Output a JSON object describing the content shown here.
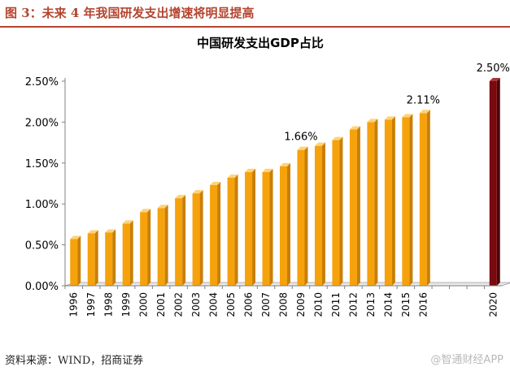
{
  "figure": {
    "caption": "图 3：未来 4 年我国研发支出增速将明显提高",
    "source": "资料来源：WIND，招商证券",
    "watermark": "@智通财经APP"
  },
  "colors": {
    "bar": "#f6a20c",
    "bar_highlight": "#7a0a10",
    "caption": "#b5452f"
  },
  "chart_data": {
    "type": "bar",
    "title": "中国研发支出GDP占比",
    "xlabel": "",
    "ylabel": "",
    "ylim": [
      0,
      2.5
    ],
    "yticks": [
      "0.00%",
      "0.50%",
      "1.00%",
      "1.50%",
      "2.00%",
      "2.50%"
    ],
    "categories": [
      "1996",
      "1997",
      "1998",
      "1999",
      "2000",
      "2001",
      "2002",
      "2003",
      "2004",
      "2005",
      "2006",
      "2007",
      "2008",
      "2009",
      "2010",
      "2011",
      "2012",
      "2013",
      "2014",
      "2015",
      "2016",
      "",
      "",
      "",
      "2020"
    ],
    "values": [
      0.57,
      0.64,
      0.65,
      0.76,
      0.9,
      0.95,
      1.07,
      1.13,
      1.23,
      1.32,
      1.39,
      1.39,
      1.46,
      1.66,
      1.71,
      1.78,
      1.91,
      2.0,
      2.03,
      2.06,
      2.11,
      null,
      null,
      null,
      2.5
    ],
    "highlight_index": 24,
    "data_labels": [
      {
        "index": 13,
        "text": "1.66%"
      },
      {
        "index": 20,
        "text": "2.11%"
      },
      {
        "index": 24,
        "text": "2.50%"
      }
    ],
    "grid": false,
    "legend": "none"
  }
}
